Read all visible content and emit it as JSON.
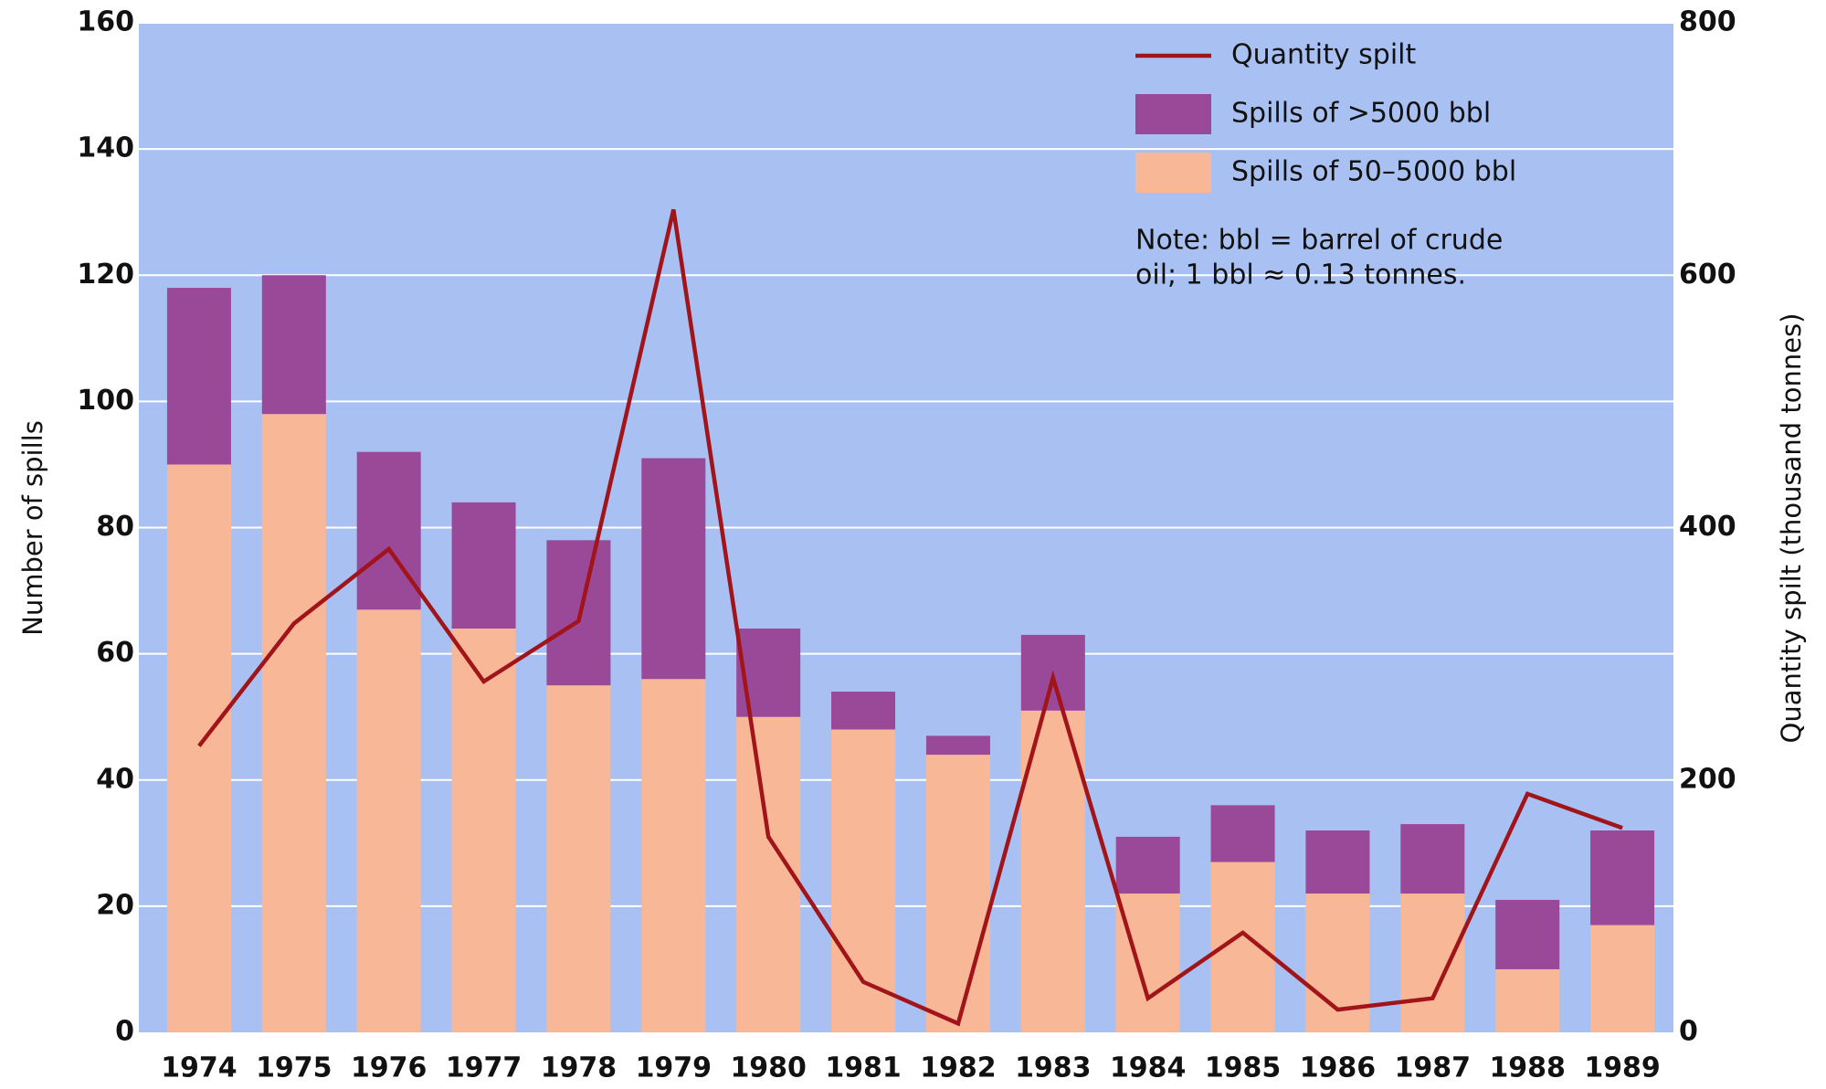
{
  "chart_data": {
    "type": "bar",
    "stacked": true,
    "y_label": "Number of spills",
    "y2_label": "Quantity spilt (thousand tonnes)",
    "categories": [
      "1974",
      "1975",
      "1976",
      "1977",
      "1978",
      "1979",
      "1980",
      "1981",
      "1982",
      "1983",
      "1984",
      "1985",
      "1986",
      "1987",
      "1988",
      "1989"
    ],
    "series": [
      {
        "name": "Spills of 50–5000 bbl",
        "color": "#f8b898",
        "values": [
          90,
          98,
          67,
          64,
          55,
          56,
          50,
          48,
          44,
          51,
          22,
          27,
          22,
          22,
          10,
          17
        ]
      },
      {
        "name": "Spills of >5000 bbl",
        "color": "#9a4898",
        "values": [
          28,
          22,
          25,
          20,
          23,
          35,
          14,
          6,
          3,
          12,
          9,
          9,
          10,
          11,
          11,
          15
        ]
      },
      {
        "name": "Quantity spilt",
        "type": "line",
        "axis": "y2",
        "color": "#a0141a",
        "values": [
          227,
          324,
          383,
          278,
          326,
          652,
          155,
          40,
          7,
          281,
          27,
          79,
          18,
          27,
          189,
          162
        ]
      }
    ],
    "ylim": [
      0,
      160
    ],
    "yticks": [
      0,
      20,
      40,
      60,
      80,
      100,
      120,
      140,
      160
    ],
    "y2lim": [
      0,
      800
    ],
    "y2ticks": [
      0,
      200,
      400,
      600,
      800
    ],
    "grid": true,
    "legend": "top-right",
    "note": [
      "Note: bbl = barrel of crude",
      "oil; 1 bbl ≈ 0.13 tonnes."
    ]
  }
}
